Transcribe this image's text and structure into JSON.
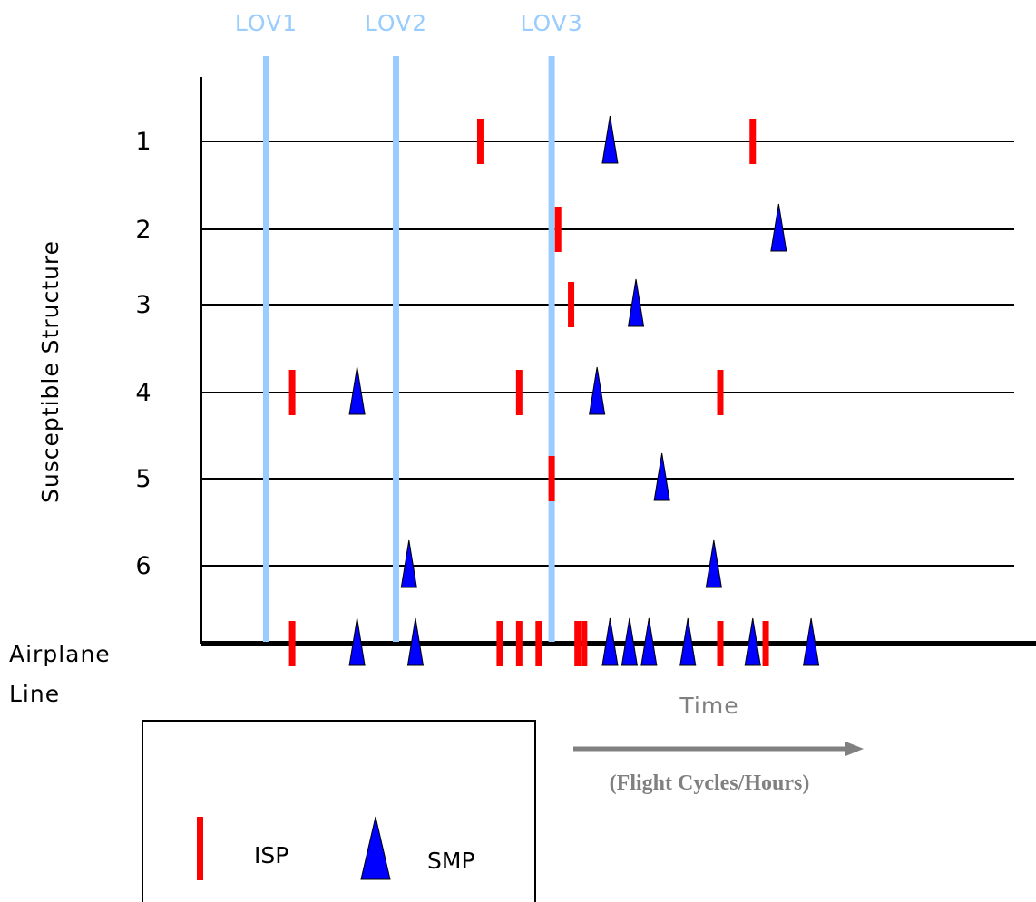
{
  "limits_of_validity": [
    {
      "label": "LOV1",
      "time": 1.0
    },
    {
      "label": "LOV2",
      "time": 3.0
    },
    {
      "label": "LOV3",
      "time": 5.4
    }
  ],
  "y_axis_label": "Susceptible Structure",
  "x_axis_label": "Time",
  "x_axis_units": "(Flight Cycles/Hours)",
  "airplane_line_label": [
    "Airplane",
    "Line"
  ],
  "rows": [
    {
      "label": "1",
      "isp": [
        4.3,
        8.5
      ],
      "smp": [
        6.3
      ]
    },
    {
      "label": "2",
      "isp": [
        5.5
      ],
      "smp": [
        8.9
      ]
    },
    {
      "label": "3",
      "isp": [
        5.7
      ],
      "smp": [
        6.7
      ]
    },
    {
      "label": "4",
      "isp": [
        1.4,
        4.9,
        8.0
      ],
      "smp": [
        2.4,
        6.1
      ]
    },
    {
      "label": "5",
      "isp": [
        5.4
      ],
      "smp": [
        7.1
      ]
    },
    {
      "label": "6",
      "isp": [],
      "smp": [
        3.2,
        7.9
      ]
    }
  ],
  "airplane_line": {
    "isp": [
      1.4,
      4.6,
      4.9,
      5.2,
      5.8,
      5.9,
      8.0,
      8.7
    ],
    "smp": [
      2.4,
      3.3,
      6.3,
      6.6,
      6.9,
      7.5,
      8.5,
      9.4
    ]
  },
  "legend": {
    "isp_label": "ISP",
    "smp_label": "SMP"
  },
  "colors": {
    "isp": "#ff0000",
    "smp": "#0000ff",
    "lov_line": "#99ccff",
    "lov_label": "#99ccff",
    "axis_label": "#808080",
    "arrow": "#808080"
  }
}
